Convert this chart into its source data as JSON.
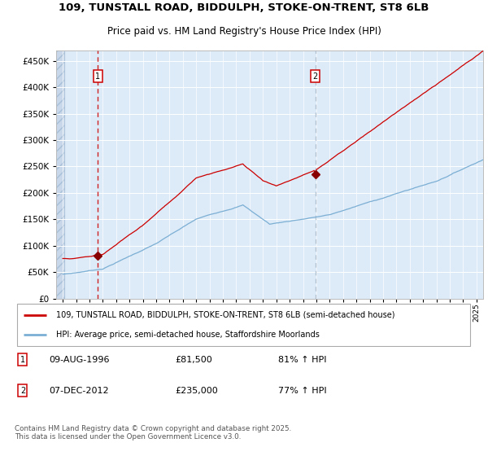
{
  "title_line1": "109, TUNSTALL ROAD, BIDDULPH, STOKE-ON-TRENT, ST8 6LB",
  "title_line2": "Price paid vs. HM Land Registry's House Price Index (HPI)",
  "bg_color": "#ddeaf7",
  "grid_color": "#ffffff",
  "red_line_color": "#cc0000",
  "blue_line_color": "#7bafd4",
  "dashed1_color": "#cc0000",
  "dashed2_color": "#aabbcc",
  "marker1_year": 1996.61,
  "marker1_price": 81500,
  "marker2_year": 2012.92,
  "marker2_price": 235000,
  "xmin": 1993.5,
  "xmax": 2025.5,
  "ymin": 0,
  "ymax": 470000,
  "ytick_max": 450000,
  "ytick_step": 50000,
  "legend_red_label": "109, TUNSTALL ROAD, BIDDULPH, STOKE-ON-TRENT, ST8 6LB (semi-detached house)",
  "legend_blue_label": "HPI: Average price, semi-detached house, Staffordshire Moorlands",
  "note1_box": "1",
  "note1_date": "09-AUG-1996",
  "note1_price": "£81,500",
  "note1_hpi": "81% ↑ HPI",
  "note2_box": "2",
  "note2_date": "07-DEC-2012",
  "note2_price": "£235,000",
  "note2_hpi": "77% ↑ HPI",
  "footer": "Contains HM Land Registry data © Crown copyright and database right 2025.\nThis data is licensed under the Open Government Licence v3.0."
}
